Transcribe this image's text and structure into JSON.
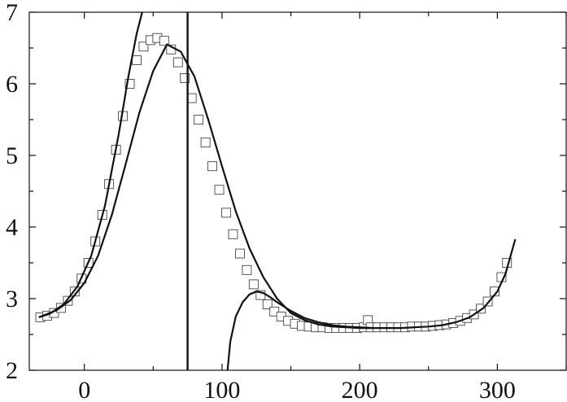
{
  "chart_data": {
    "type": "scatter",
    "title": "",
    "xlabel": "",
    "ylabel": "",
    "xlim": [
      -40,
      350
    ],
    "ylim": [
      2,
      7
    ],
    "x_ticks": [
      0,
      100,
      200,
      300
    ],
    "y_ticks": [
      2,
      3,
      4,
      5,
      6,
      7
    ],
    "x_tick_labels": [
      "0",
      "100",
      "200",
      "300"
    ],
    "y_tick_labels": [
      "2",
      "3",
      "4",
      "5",
      "6",
      "7"
    ],
    "grid": false,
    "vertical_line_x": 75,
    "series": [
      {
        "kind": "markers",
        "marker": "open-square",
        "x": [
          -32,
          -27,
          -22,
          -17,
          -12,
          -7,
          -2,
          3,
          8,
          13,
          18,
          23,
          28,
          33,
          38,
          43,
          48,
          53,
          58,
          63,
          68,
          73,
          78,
          83,
          88,
          93,
          98,
          103,
          108,
          113,
          118,
          123,
          128,
          133,
          138,
          143,
          148,
          153,
          158,
          163,
          168,
          173,
          178,
          183,
          188,
          193,
          198,
          203,
          206,
          208,
          213,
          218,
          223,
          228,
          233,
          238,
          243,
          248,
          253,
          258,
          263,
          268,
          273,
          278,
          283,
          288,
          293,
          298,
          303,
          307
        ],
        "y": [
          2.74,
          2.76,
          2.8,
          2.87,
          2.97,
          3.1,
          3.28,
          3.5,
          3.8,
          4.17,
          4.6,
          5.08,
          5.55,
          6.0,
          6.33,
          6.52,
          6.61,
          6.64,
          6.6,
          6.48,
          6.3,
          6.08,
          5.8,
          5.5,
          5.18,
          4.85,
          4.52,
          4.2,
          3.9,
          3.63,
          3.4,
          3.2,
          3.05,
          2.92,
          2.82,
          2.75,
          2.69,
          2.65,
          2.62,
          2.61,
          2.6,
          2.6,
          2.59,
          2.59,
          2.59,
          2.59,
          2.59,
          2.6,
          2.7,
          2.6,
          2.6,
          2.6,
          2.6,
          2.6,
          2.6,
          2.61,
          2.61,
          2.61,
          2.62,
          2.63,
          2.64,
          2.66,
          2.69,
          2.73,
          2.78,
          2.86,
          2.96,
          3.1,
          3.3,
          3.5
        ]
      },
      {
        "kind": "line",
        "x": [
          -33,
          -25,
          -15,
          -5,
          5,
          15,
          25,
          32,
          38,
          42
        ],
        "y": [
          2.74,
          2.79,
          2.92,
          3.17,
          3.6,
          4.3,
          5.3,
          6.1,
          6.7,
          7.0
        ]
      },
      {
        "kind": "line",
        "x": [
          -33,
          -20,
          -10,
          0,
          10,
          20,
          30,
          40,
          50,
          60,
          70,
          80,
          90,
          100,
          110,
          120,
          130,
          140,
          150,
          160,
          170,
          180,
          190,
          200,
          210,
          220,
          230,
          240,
          250,
          260,
          270,
          280,
          290,
          300,
          306,
          313
        ],
        "y": [
          2.74,
          2.84,
          2.98,
          3.22,
          3.6,
          4.17,
          4.88,
          5.6,
          6.18,
          6.55,
          6.45,
          6.1,
          5.5,
          4.85,
          4.22,
          3.7,
          3.3,
          3.0,
          2.8,
          2.7,
          2.64,
          2.61,
          2.6,
          2.59,
          2.59,
          2.59,
          2.59,
          2.6,
          2.61,
          2.63,
          2.67,
          2.74,
          2.87,
          3.1,
          3.35,
          3.83
        ]
      },
      {
        "kind": "line",
        "x": [
          104,
          106,
          110,
          115,
          120,
          125,
          130,
          135,
          140,
          150,
          160,
          170,
          180,
          190,
          200,
          210
        ],
        "y": [
          2.0,
          2.4,
          2.75,
          2.95,
          3.06,
          3.1,
          3.08,
          3.02,
          2.95,
          2.83,
          2.73,
          2.67,
          2.63,
          2.61,
          2.6,
          2.59
        ]
      }
    ]
  }
}
